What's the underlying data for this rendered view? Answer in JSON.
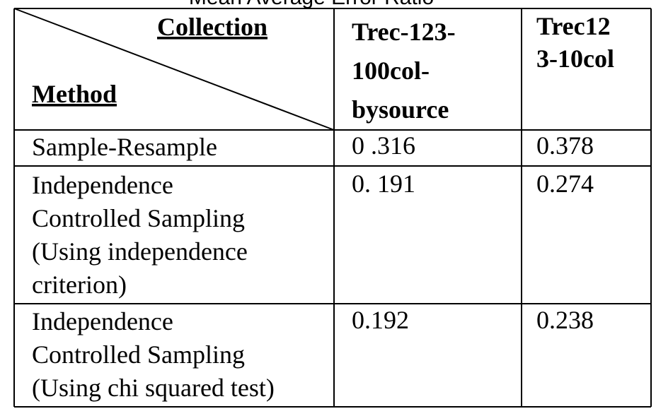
{
  "caption": "Mean Average Error Ratio",
  "table": {
    "corner": {
      "column_header": "Collection",
      "row_header": "Method"
    },
    "columns": [
      [
        "Trec-123-",
        "100col-",
        "bysource"
      ],
      [
        "Trec12",
        "3-10col"
      ]
    ],
    "rows": [
      {
        "method": [
          "Sample-Resample"
        ],
        "values": [
          "0 .316",
          "0.378"
        ]
      },
      {
        "method": [
          "Independence",
          "Controlled Sampling",
          "(Using independence",
          "criterion)"
        ],
        "values": [
          "0. 191",
          "0.274"
        ]
      },
      {
        "method": [
          "Independence",
          "Controlled Sampling",
          "(Using chi squared test)"
        ],
        "values": [
          "0.192",
          "0.238"
        ]
      }
    ]
  }
}
